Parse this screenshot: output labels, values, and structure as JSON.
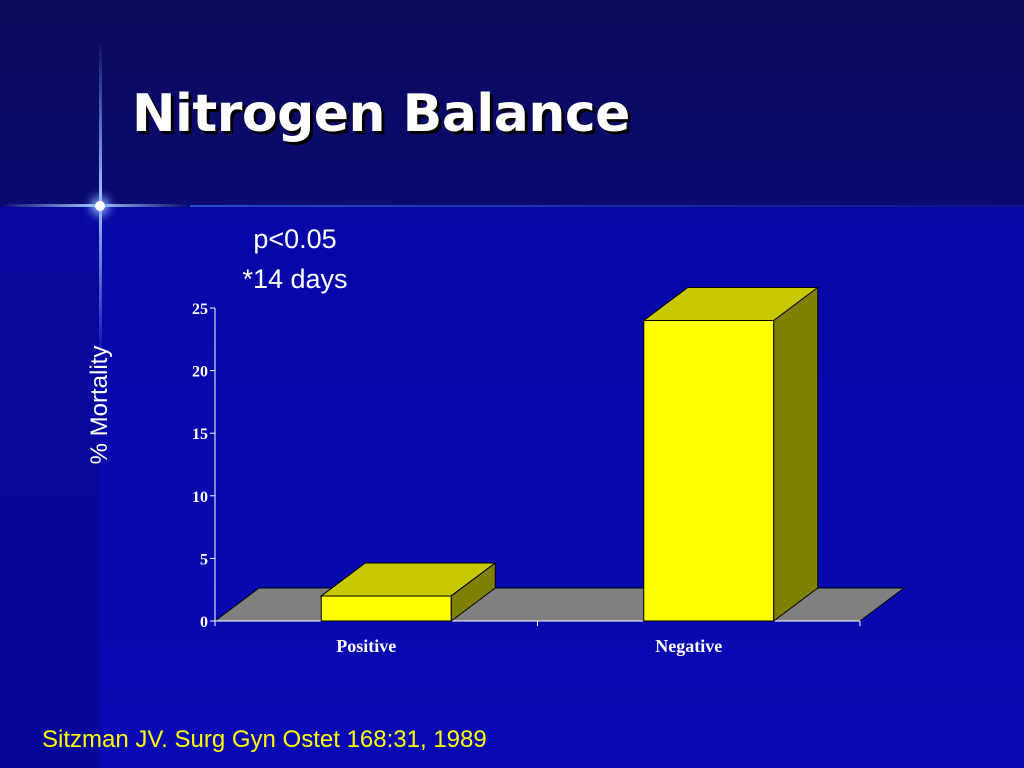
{
  "slide": {
    "title": "Nitrogen Balance",
    "note_line1": "p<0.05",
    "note_line2": "*14 days",
    "citation": "Sitzman JV. Surg Gyn Ostet 168:31, 1989"
  },
  "chart_data": {
    "type": "bar",
    "style": "3d",
    "categories": [
      "Positive",
      "Negative"
    ],
    "values": [
      2,
      24
    ],
    "ylabel": "% Mortality",
    "ylim": [
      0,
      25
    ],
    "yticks": [
      0,
      5,
      10,
      15,
      20,
      25
    ],
    "grid": false,
    "bar_colors": {
      "front": "#ffff00",
      "top": "#c8c800",
      "side": "#7f7f00"
    },
    "floor_color": "#808080"
  }
}
